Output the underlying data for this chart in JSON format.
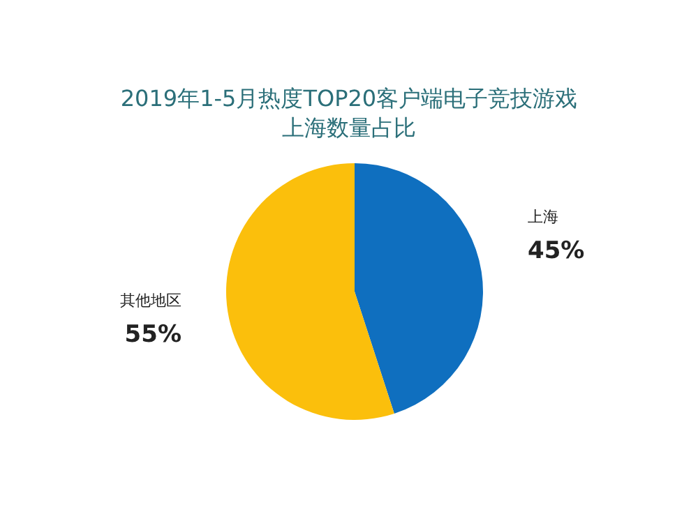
{
  "chart_data": {
    "type": "pie",
    "title": "2019年1-5月热度TOP20客户端电子竞技游戏上海数量占比",
    "categories": [
      "上海",
      "其他地区"
    ],
    "values": [
      45,
      55
    ],
    "colors": [
      "#0f6fbf",
      "#fbbf0c"
    ],
    "value_labels": [
      "45%",
      "55%"
    ],
    "legend": false
  }
}
